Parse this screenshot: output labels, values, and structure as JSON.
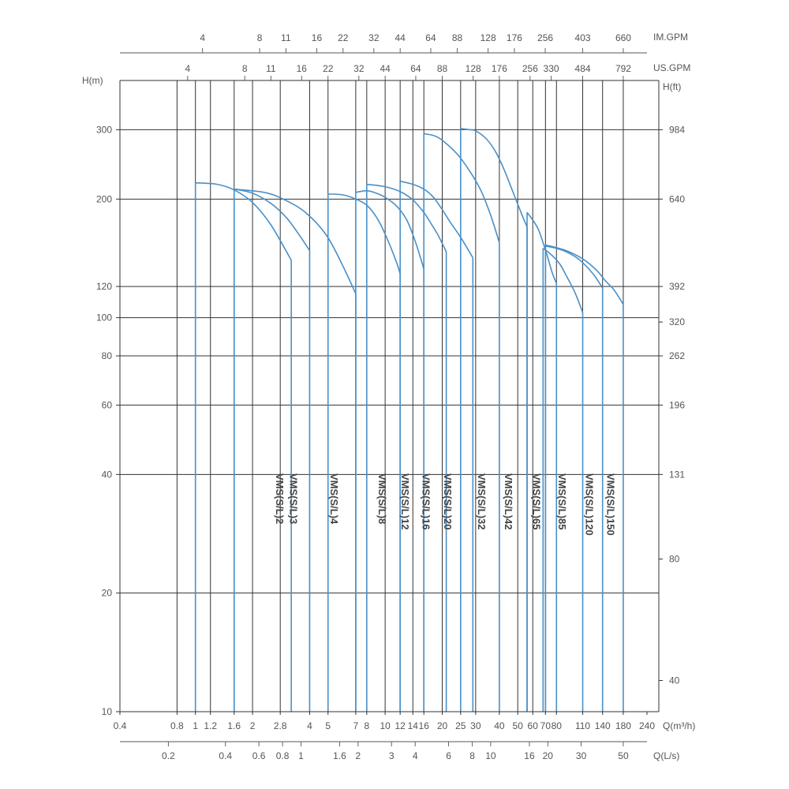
{
  "chart_data": {
    "type": "line",
    "title": "",
    "xlabel": "Q(m³/h)",
    "ylabel": "H(m)",
    "y2label": "H(ft)",
    "x_scale": "log",
    "y_scale": "log",
    "xlim": [
      0.4,
      240
    ],
    "ylim": [
      10,
      400
    ],
    "grid": true,
    "x_ticks": [
      "0.4",
      "0.8",
      "1",
      "1.2",
      "1.6",
      "2",
      "2.8",
      "4",
      "5",
      "7",
      "8",
      "10",
      "12",
      "14",
      "16",
      "20",
      "25",
      "30",
      "40",
      "50",
      "60",
      "70",
      "80",
      "110",
      "140",
      "180",
      "240"
    ],
    "x_tick_values": [
      0.4,
      0.8,
      1,
      1.2,
      1.6,
      2,
      2.8,
      4,
      5,
      7,
      8,
      10,
      12,
      14,
      16,
      20,
      25,
      30,
      40,
      50,
      60,
      70,
      80,
      110,
      140,
      180,
      240
    ],
    "y_ticks": [
      "10",
      "20",
      "40",
      "60",
      "80",
      "100",
      "120",
      "200",
      "300"
    ],
    "y_tick_values": [
      10,
      20,
      40,
      60,
      80,
      100,
      120,
      200,
      300
    ],
    "y2_ticks": [
      "40",
      "80",
      "131",
      "196",
      "262",
      "320",
      "392",
      "640",
      "984"
    ],
    "y2_tick_values": [
      12,
      24.4,
      40,
      60,
      80,
      97.5,
      120,
      200,
      300
    ],
    "secondary_axes": [
      {
        "label": "Q(L/s)",
        "position": "bottom",
        "ticks": [
          "0.2",
          "0.4",
          "0.6",
          "0.8",
          "1",
          "1.6",
          "2",
          "3",
          "4",
          "6",
          "8",
          "10",
          "16",
          "20",
          "30",
          "50"
        ],
        "q_m3h": [
          0.72,
          1.44,
          2.16,
          2.88,
          3.6,
          5.76,
          7.2,
          10.8,
          14.4,
          21.6,
          28.8,
          36,
          57.6,
          72,
          108,
          180
        ]
      },
      {
        "label": "US.GPM",
        "position": "top",
        "ticks": [
          "4",
          "8",
          "11",
          "16",
          "22",
          "32",
          "44",
          "64",
          "88",
          "128",
          "176",
          "256",
          "330",
          "484",
          "792"
        ],
        "q_m3h": [
          0.91,
          1.82,
          2.5,
          3.63,
          5,
          7.27,
          10,
          14.5,
          20,
          29.1,
          40,
          58.1,
          75,
          110,
          180
        ]
      },
      {
        "label": "IM.GPM",
        "position": "top",
        "ticks": [
          "4",
          "8",
          "11",
          "16",
          "22",
          "32",
          "44",
          "64",
          "88",
          "128",
          "176",
          "256",
          "403",
          "660"
        ],
        "q_m3h": [
          1.09,
          2.18,
          3,
          4.36,
          6,
          8.72,
          12,
          17.4,
          24,
          34.9,
          48,
          69.8,
          110,
          180
        ]
      }
    ],
    "series": [
      {
        "name": "VMS(S/L)2",
        "q": [
          1,
          1.3,
          1.6,
          2,
          2.5,
          3.2
        ],
        "h": [
          220,
          218,
          211,
          196,
          172,
          140
        ],
        "q_end": 3.2,
        "label_q": 2.8
      },
      {
        "name": "VMS(S/L)3",
        "q": [
          1.6,
          2,
          2.5,
          3,
          3.5,
          4
        ],
        "h": [
          212,
          207,
          195,
          180,
          163,
          148
        ],
        "q_end": 4,
        "label_q": 3.3
      },
      {
        "name": "VMS(S/L)4",
        "q": [
          1.6,
          2.3,
          2.9,
          3.8,
          4.9,
          6,
          7
        ],
        "h": [
          212,
          208,
          200,
          185,
          162,
          135,
          115
        ],
        "q_end": 7,
        "label_q": 5.4
      },
      {
        "name": "VMS(S/L)8",
        "q": [
          5,
          6,
          7,
          8,
          9,
          10,
          11.5,
          12
        ],
        "h": [
          206,
          205,
          200,
          193,
          180,
          163,
          138,
          129
        ],
        "q_end": 12,
        "label_q": 9.7
      },
      {
        "name": "VMS(S/L)12",
        "q": [
          7,
          8,
          9,
          10,
          11.5,
          13,
          14.5,
          16
        ],
        "h": [
          208,
          210,
          207,
          202,
          192,
          177,
          155,
          133
        ],
        "q_end": 16,
        "label_q": 12.8
      },
      {
        "name": "VMS(S/L)16",
        "q": [
          8,
          10,
          12,
          14,
          16,
          17.5,
          19,
          21
        ],
        "h": [
          218,
          215,
          209,
          199,
          185,
          173,
          162,
          147
        ],
        "q_end": 21,
        "label_q": 16.5
      },
      {
        "name": "VMS(S/L)20",
        "q": [
          12,
          14,
          16,
          18,
          20,
          22,
          25,
          29
        ],
        "h": [
          222,
          218,
          212,
          202,
          188,
          175,
          160,
          142
        ],
        "q_end": 29,
        "label_q": 21.5
      },
      {
        "name": "VMS(S/L)32",
        "q": [
          16,
          18,
          20,
          24,
          28,
          32,
          36,
          40
        ],
        "h": [
          293,
          290,
          282,
          260,
          235,
          210,
          182,
          155
        ],
        "q_end": 40,
        "label_q": 32.5
      },
      {
        "name": "VMS(S/L)42",
        "q": [
          25,
          28,
          30,
          34,
          38,
          42,
          46,
          52,
          56
        ],
        "h": [
          302,
          300,
          298,
          285,
          265,
          240,
          215,
          185,
          170
        ],
        "q_end": 56,
        "label_q": 45
      },
      {
        "name": "VMS(S/L)65",
        "q": [
          56,
          60,
          64,
          68,
          72,
          76,
          80
        ],
        "h": [
          185,
          177,
          168,
          155,
          142,
          130,
          122
        ],
        "q_end": 80,
        "label_q": 63
      },
      {
        "name": "VMS(S/L)85",
        "q": [
          68,
          72,
          78,
          84,
          90,
          100,
          110
        ],
        "h": [
          150,
          147,
          142,
          136,
          128,
          116,
          103
        ],
        "q_end": 110,
        "label_q": 86
      },
      {
        "name": "VMS(S/L)120",
        "q": [
          70,
          80,
          90,
          100,
          110,
          125,
          140
        ],
        "h": [
          152,
          150,
          147,
          143,
          138,
          129,
          119
        ],
        "q_end": 140,
        "label_q": 120
      },
      {
        "name": "VMS(S/L)150",
        "q": [
          70,
          90,
          110,
          130,
          145,
          160,
          170,
          180
        ],
        "h": [
          153,
          148,
          141,
          132,
          124,
          118,
          113,
          108
        ],
        "q_end": 180,
        "label_q": 155
      }
    ]
  }
}
